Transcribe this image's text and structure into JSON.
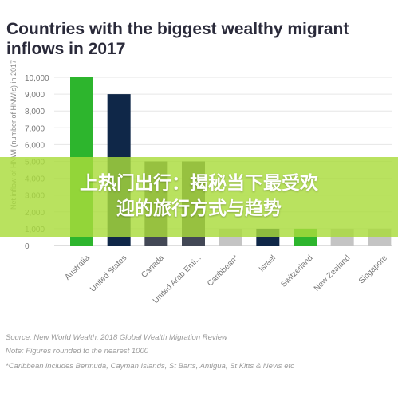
{
  "chart_data": {
    "type": "bar",
    "title": "Countries with the biggest wealthy migrant inflows in 2017",
    "ylabel": "Net inflow of HNWI (number of HNWIs) in 2017",
    "ylim": [
      0,
      10000
    ],
    "yticks": [
      "10,000",
      "9,000",
      "8,000",
      "7,000",
      "6,000",
      "5,000",
      "4,000",
      "3,000",
      "2,000",
      "1,000",
      "0"
    ],
    "categories": [
      "Australia",
      "United States",
      "Canada",
      "United Arab Emi...",
      "Caribbean*",
      "Israel",
      "Switzerland",
      "New Zealand",
      "Singapore"
    ],
    "values": [
      10000,
      9000,
      5000,
      5000,
      1000,
      1000,
      1000,
      1000,
      1000
    ],
    "bar_colors": [
      "#2db52d",
      "#0f2748",
      "#434856",
      "#434856",
      "#c4c4c4",
      "#0f2748",
      "#2db52d",
      "#c4c4c4",
      "#c4c4c4"
    ],
    "grid": true
  },
  "overlay": {
    "line1": "上热门出行：揭秘当下最受欢",
    "line2": "迎的旅行方式与趋势"
  },
  "footer": {
    "source": "Source: New World Wealth, 2018 Global Wealth Migration Review",
    "note": "Note: Figures rounded to the nearest 1000",
    "caribbean": "*Caribbean includes Bermuda, Cayman Islands, St Barts, Antigua, St Kitts & Nevis etc"
  }
}
